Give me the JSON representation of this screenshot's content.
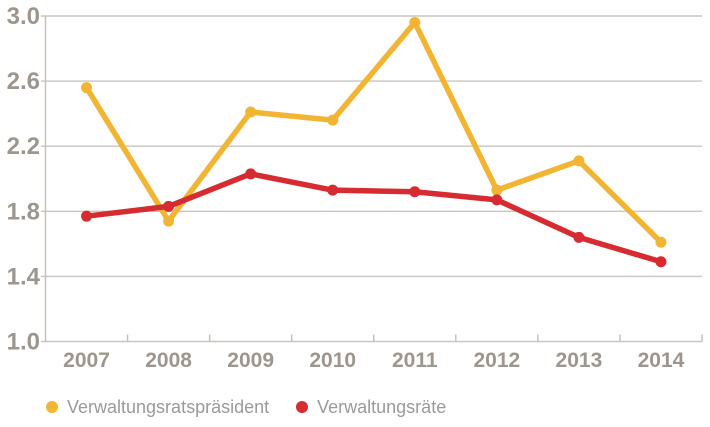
{
  "chart_data": {
    "type": "line",
    "title": "",
    "xlabel": "",
    "ylabel": "",
    "categories": [
      "2007",
      "2008",
      "2009",
      "2010",
      "2011",
      "2012",
      "2013",
      "2014"
    ],
    "series": [
      {
        "name": "Verwaltungsratspräsident",
        "color": "#f1b433",
        "values": [
          2.56,
          1.74,
          2.41,
          2.36,
          2.96,
          1.93,
          2.11,
          1.61
        ]
      },
      {
        "name": "Verwaltungsräte",
        "color": "#d62b30",
        "values": [
          1.77,
          1.83,
          2.03,
          1.93,
          1.92,
          1.87,
          1.64,
          1.49
        ]
      }
    ],
    "ylim": [
      1.0,
      3.0
    ],
    "yticks": [
      "1.0",
      "1.4",
      "1.8",
      "2.2",
      "2.6",
      "3.0"
    ],
    "grid": true,
    "legend_position": "bottom",
    "grid_color": "#c9c6c1",
    "axis_color": "#c2bfba",
    "label_color": "#9d968e",
    "background_color": "#ffffff"
  }
}
